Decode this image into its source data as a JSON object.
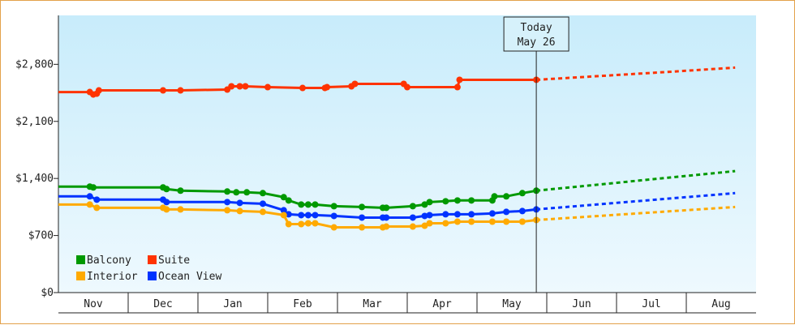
{
  "chart_data": {
    "type": "line",
    "title": "",
    "xlabel": "",
    "ylabel": "",
    "ylim": [
      0,
      3400
    ],
    "y_ticks": [
      {
        "value": 0,
        "label": "$0"
      },
      {
        "value": 700,
        "label": "$700"
      },
      {
        "value": 1400,
        "label": "$1,400"
      },
      {
        "value": 2100,
        "label": "$2,100"
      },
      {
        "value": 2800,
        "label": "$2,800"
      }
    ],
    "x_months": [
      "Nov",
      "Dec",
      "Jan",
      "Feb",
      "Mar",
      "Apr",
      "May",
      "Jun",
      "Jul",
      "Aug"
    ],
    "today": {
      "line1": "Today",
      "line2": "May 26",
      "month_pos": 6.85
    },
    "legend": {
      "placement": "bottom-left"
    },
    "series": [
      {
        "name": "Suite",
        "color": "#ff3300",
        "points": [
          [
            0.0,
            2460
          ],
          [
            0.45,
            2460
          ],
          [
            0.5,
            2430
          ],
          [
            0.55,
            2440
          ],
          [
            0.58,
            2480
          ],
          [
            1.5,
            2480
          ],
          [
            1.75,
            2480
          ],
          [
            2.42,
            2490
          ],
          [
            2.48,
            2530
          ],
          [
            2.6,
            2530
          ],
          [
            2.68,
            2530
          ],
          [
            3.0,
            2520
          ],
          [
            3.5,
            2510
          ],
          [
            3.82,
            2510
          ],
          [
            3.85,
            2520
          ],
          [
            4.2,
            2530
          ],
          [
            4.25,
            2560
          ],
          [
            4.95,
            2560
          ],
          [
            5.0,
            2520
          ],
          [
            5.72,
            2520
          ],
          [
            5.75,
            2610
          ],
          [
            6.85,
            2610
          ]
        ],
        "forecast": [
          [
            6.85,
            2610
          ],
          [
            8.8,
            2710
          ],
          [
            9.7,
            2760
          ]
        ]
      },
      {
        "name": "Balcony",
        "color": "#009900",
        "points": [
          [
            0.0,
            1300
          ],
          [
            0.45,
            1300
          ],
          [
            0.5,
            1290
          ],
          [
            1.5,
            1290
          ],
          [
            1.55,
            1270
          ],
          [
            1.75,
            1250
          ],
          [
            2.42,
            1240
          ],
          [
            2.55,
            1230
          ],
          [
            2.7,
            1230
          ],
          [
            2.93,
            1220
          ],
          [
            3.23,
            1170
          ],
          [
            3.3,
            1130
          ],
          [
            3.48,
            1080
          ],
          [
            3.58,
            1080
          ],
          [
            3.68,
            1080
          ],
          [
            3.95,
            1060
          ],
          [
            4.35,
            1050
          ],
          [
            4.65,
            1040
          ],
          [
            4.7,
            1040
          ],
          [
            5.08,
            1060
          ],
          [
            5.25,
            1080
          ],
          [
            5.32,
            1110
          ],
          [
            5.55,
            1120
          ],
          [
            5.72,
            1130
          ],
          [
            5.92,
            1130
          ],
          [
            6.22,
            1130
          ],
          [
            6.25,
            1180
          ],
          [
            6.42,
            1180
          ],
          [
            6.65,
            1220
          ],
          [
            6.85,
            1250
          ]
        ],
        "forecast": [
          [
            6.85,
            1250
          ],
          [
            9.7,
            1490
          ]
        ]
      },
      {
        "name": "Ocean View",
        "color": "#0033ff",
        "points": [
          [
            0.0,
            1180
          ],
          [
            0.45,
            1180
          ],
          [
            0.55,
            1140
          ],
          [
            1.5,
            1140
          ],
          [
            1.55,
            1110
          ],
          [
            2.42,
            1110
          ],
          [
            2.6,
            1100
          ],
          [
            2.93,
            1090
          ],
          [
            3.23,
            1010
          ],
          [
            3.3,
            960
          ],
          [
            3.48,
            950
          ],
          [
            3.58,
            950
          ],
          [
            3.68,
            950
          ],
          [
            3.95,
            940
          ],
          [
            4.35,
            920
          ],
          [
            4.65,
            920
          ],
          [
            4.7,
            920
          ],
          [
            5.08,
            920
          ],
          [
            5.25,
            940
          ],
          [
            5.32,
            950
          ],
          [
            5.55,
            960
          ],
          [
            5.72,
            960
          ],
          [
            5.92,
            960
          ],
          [
            6.22,
            970
          ],
          [
            6.42,
            990
          ],
          [
            6.65,
            1000
          ],
          [
            6.85,
            1020
          ]
        ],
        "forecast": [
          [
            6.85,
            1020
          ],
          [
            9.7,
            1220
          ]
        ]
      },
      {
        "name": "Interior",
        "color": "#ffaa00",
        "points": [
          [
            0.0,
            1080
          ],
          [
            0.45,
            1080
          ],
          [
            0.55,
            1040
          ],
          [
            1.5,
            1040
          ],
          [
            1.55,
            1020
          ],
          [
            1.75,
            1020
          ],
          [
            2.42,
            1010
          ],
          [
            2.6,
            1000
          ],
          [
            2.93,
            990
          ],
          [
            3.23,
            950
          ],
          [
            3.3,
            840
          ],
          [
            3.48,
            840
          ],
          [
            3.58,
            850
          ],
          [
            3.68,
            850
          ],
          [
            3.95,
            800
          ],
          [
            4.35,
            800
          ],
          [
            4.65,
            800
          ],
          [
            4.7,
            810
          ],
          [
            5.08,
            810
          ],
          [
            5.25,
            820
          ],
          [
            5.32,
            850
          ],
          [
            5.55,
            850
          ],
          [
            5.72,
            870
          ],
          [
            5.92,
            870
          ],
          [
            6.22,
            870
          ],
          [
            6.42,
            870
          ],
          [
            6.65,
            870
          ],
          [
            6.85,
            890
          ]
        ],
        "forecast": [
          [
            6.85,
            890
          ],
          [
            9.7,
            1050
          ]
        ]
      }
    ],
    "legend_order": [
      "Balcony",
      "Suite",
      "Interior",
      "Ocean View"
    ]
  }
}
